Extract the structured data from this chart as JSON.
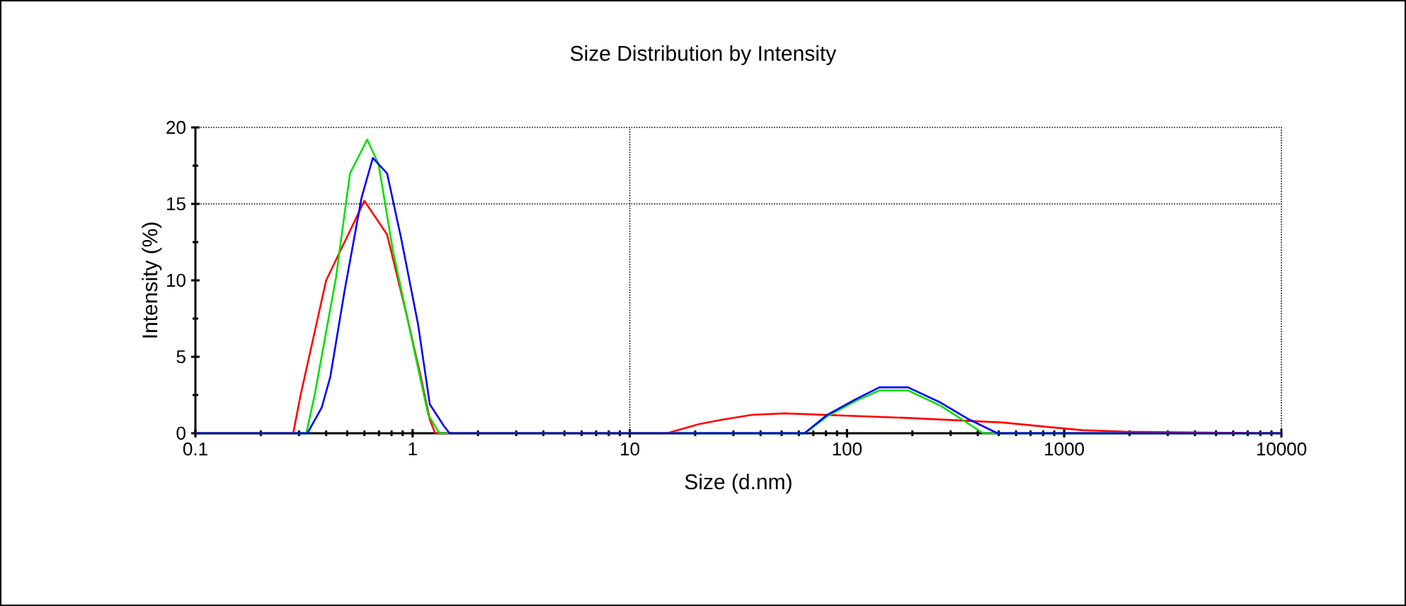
{
  "chart_data": {
    "type": "line",
    "title": "Size Distribution by Intensity",
    "xlabel": "Size (d.nm)",
    "ylabel": "Intensity (%)",
    "log": "x",
    "xlim": [
      0.1,
      10000
    ],
    "ylim": [
      0,
      20
    ],
    "xticks": [
      {
        "value": 0.1,
        "label": "0.1"
      },
      1,
      10,
      100,
      1000,
      10000
    ],
    "yticks": [
      0,
      5,
      10,
      15,
      20
    ],
    "grid": false,
    "marker": "none",
    "line_style": "solid",
    "ref_lines": [
      {
        "axis": "y",
        "value": 15,
        "line_style": "dotted"
      },
      {
        "axis": "x",
        "value": 10,
        "line_style": "dotted"
      }
    ],
    "series": [
      {
        "color": "#ff0000",
        "x": [
          0.1,
          0.282,
          0.305,
          0.4,
          0.6,
          0.763,
          0.94,
          1.09,
          1.2,
          1.27,
          14.8,
          20.9,
          27,
          36.5,
          51.5,
          191,
          524,
          861,
          1216,
          1910,
          10000
        ],
        "values": [
          0,
          0,
          2.5,
          10,
          15.2,
          13,
          7.7,
          3.7,
          0.9,
          0,
          0,
          0.6,
          0.9,
          1.2,
          1.3,
          1.0,
          0.7,
          0.4,
          0.2,
          0.1,
          0
        ]
      },
      {
        "color": "#00e000",
        "x": [
          0.1,
          0.324,
          0.354,
          0.444,
          0.515,
          0.618,
          0.697,
          0.81,
          0.98,
          1.18,
          1.33,
          64,
          81,
          109,
          141,
          191,
          270,
          365,
          424,
          10000
        ],
        "values": [
          0,
          0,
          2.5,
          10.2,
          17,
          19.2,
          17.6,
          12,
          6.5,
          1.2,
          0,
          0,
          1.1,
          2.1,
          2.8,
          2.8,
          1.8,
          0.6,
          0,
          0
        ]
      },
      {
        "color": "#0000ff",
        "x": [
          0.1,
          0.328,
          0.382,
          0.418,
          0.486,
          0.582,
          0.656,
          0.763,
          0.887,
          1.06,
          1.2,
          1.39,
          1.48,
          63.7,
          81,
          109,
          141,
          191,
          270,
          365,
          493,
          10000
        ],
        "values": [
          0,
          0,
          1.7,
          3.7,
          9.3,
          15.4,
          18,
          17,
          12.7,
          7.1,
          1.9,
          0.5,
          0,
          0,
          1.2,
          2.2,
          3.0,
          3.0,
          2.0,
          0.9,
          0,
          0
        ]
      }
    ]
  }
}
